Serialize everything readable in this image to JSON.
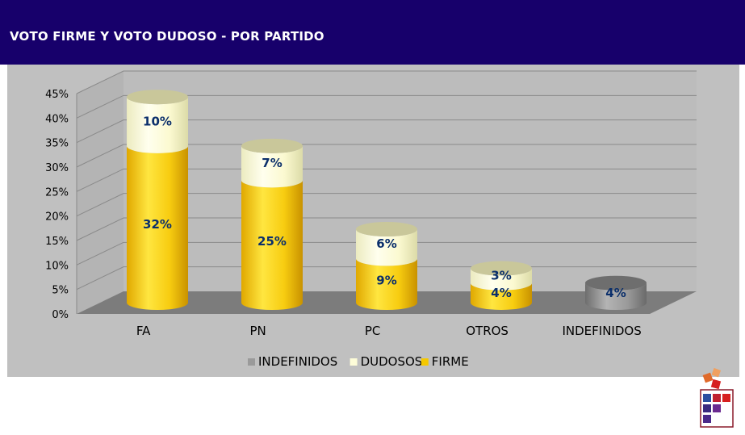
{
  "header": {
    "title": "VOTO FIRME Y VOTO DUDOSO - POR PARTIDO"
  },
  "colors": {
    "header_bg": "#17006b",
    "chart_bg": "#c0c0c0",
    "firme": "#f5c800",
    "dudosos": "#fdfcd8",
    "indefinidos": "#8c8c8c",
    "label_text": "#0b2f6b"
  },
  "chart_data": {
    "type": "bar",
    "stacked": true,
    "style": "3d-cylinder",
    "categories": [
      "FA",
      "PN",
      "PC",
      "OTROS",
      "INDEFINIDOS"
    ],
    "series": [
      {
        "name": "FIRME",
        "values": [
          32,
          25,
          9,
          4,
          null
        ],
        "labels": [
          "32%",
          "25%",
          "9%",
          "4%",
          ""
        ]
      },
      {
        "name": "DUDOSOS",
        "values": [
          10,
          7,
          6,
          3,
          null
        ],
        "labels": [
          "10%",
          "7%",
          "6%",
          "3%",
          ""
        ]
      },
      {
        "name": "INDEFINIDOS",
        "values": [
          null,
          null,
          null,
          null,
          4
        ],
        "labels": [
          "",
          "",
          "",
          "",
          "4%"
        ]
      }
    ],
    "ylim": [
      0,
      45
    ],
    "yticks": [
      "0%",
      "5%",
      "10%",
      "15%",
      "20%",
      "25%",
      "30%",
      "35%",
      "40%",
      "45%"
    ],
    "legend": [
      "INDEFINIDOS",
      "DUDOSOS",
      "FIRME"
    ],
    "legend_position": "bottom",
    "grid": true
  }
}
